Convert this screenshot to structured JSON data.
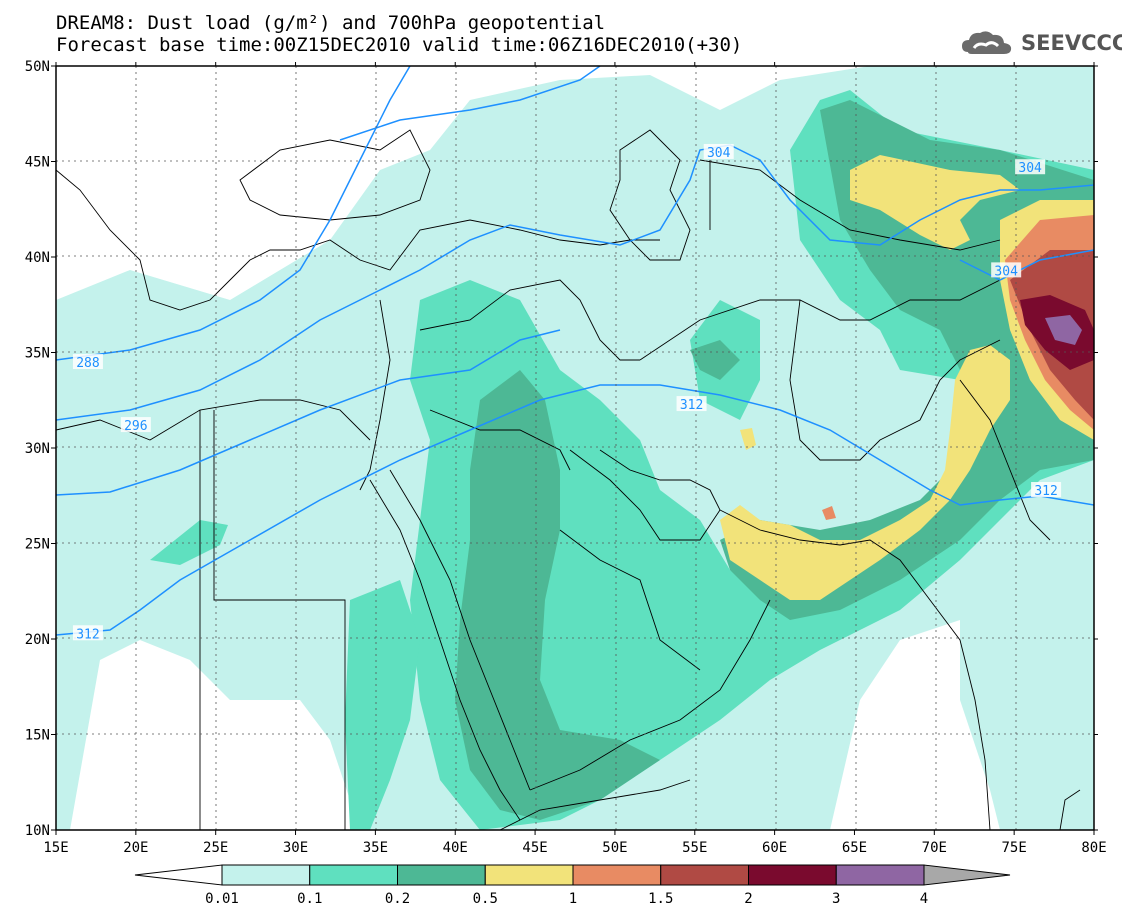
{
  "header": {
    "title_line1": "DREAM8: Dust load (g/m²) and 700hPa geopotential",
    "title_line2": "Forecast base time:00Z15DEC2010 valid time:06Z16DEC2010(+30)",
    "logo_text": "SEEVCCC",
    "logo_icon": "cloud-icon"
  },
  "map": {
    "lon_labels": [
      "15E",
      "20E",
      "25E",
      "30E",
      "35E",
      "40E",
      "45E",
      "50E",
      "55E",
      "60E",
      "65E",
      "70E",
      "75E",
      "80E"
    ],
    "lat_labels": [
      "50N",
      "45N",
      "40N",
      "35N",
      "30N",
      "25N",
      "20N",
      "15N",
      "10N"
    ],
    "contour_labels": [
      {
        "text": "288",
        "lon": 17,
        "lat": 34.5
      },
      {
        "text": "296",
        "lon": 20,
        "lat": 31.2
      },
      {
        "text": "312",
        "lon": 17,
        "lat": 20.3
      },
      {
        "text": "304",
        "lon": 56.5,
        "lat": 45.5
      },
      {
        "text": "304",
        "lon": 76,
        "lat": 44.7
      },
      {
        "text": "304",
        "lon": 74.5,
        "lat": 39.3
      },
      {
        "text": "312",
        "lon": 54.8,
        "lat": 32.3
      },
      {
        "text": "312",
        "lon": 77,
        "lat": 27.8
      }
    ],
    "colors": {
      "contour": "#1e90ff",
      "coast": "#000000"
    }
  },
  "colorbar": {
    "labels": [
      "0.01",
      "0.1",
      "0.2",
      "0.5",
      "1",
      "1.5",
      "2",
      "3",
      "4"
    ],
    "bins": [
      {
        "color": "#c4f2ec"
      },
      {
        "color": "#5fe0bf"
      },
      {
        "color": "#4db895"
      },
      {
        "color": "#f2e37a"
      },
      {
        "color": "#e88b63"
      },
      {
        "color": "#b04a44"
      },
      {
        "color": "#7a0a2e"
      },
      {
        "color": "#8f66a3"
      }
    ],
    "under_color": "#ffffff",
    "over_color": "#a8a8a8"
  }
}
